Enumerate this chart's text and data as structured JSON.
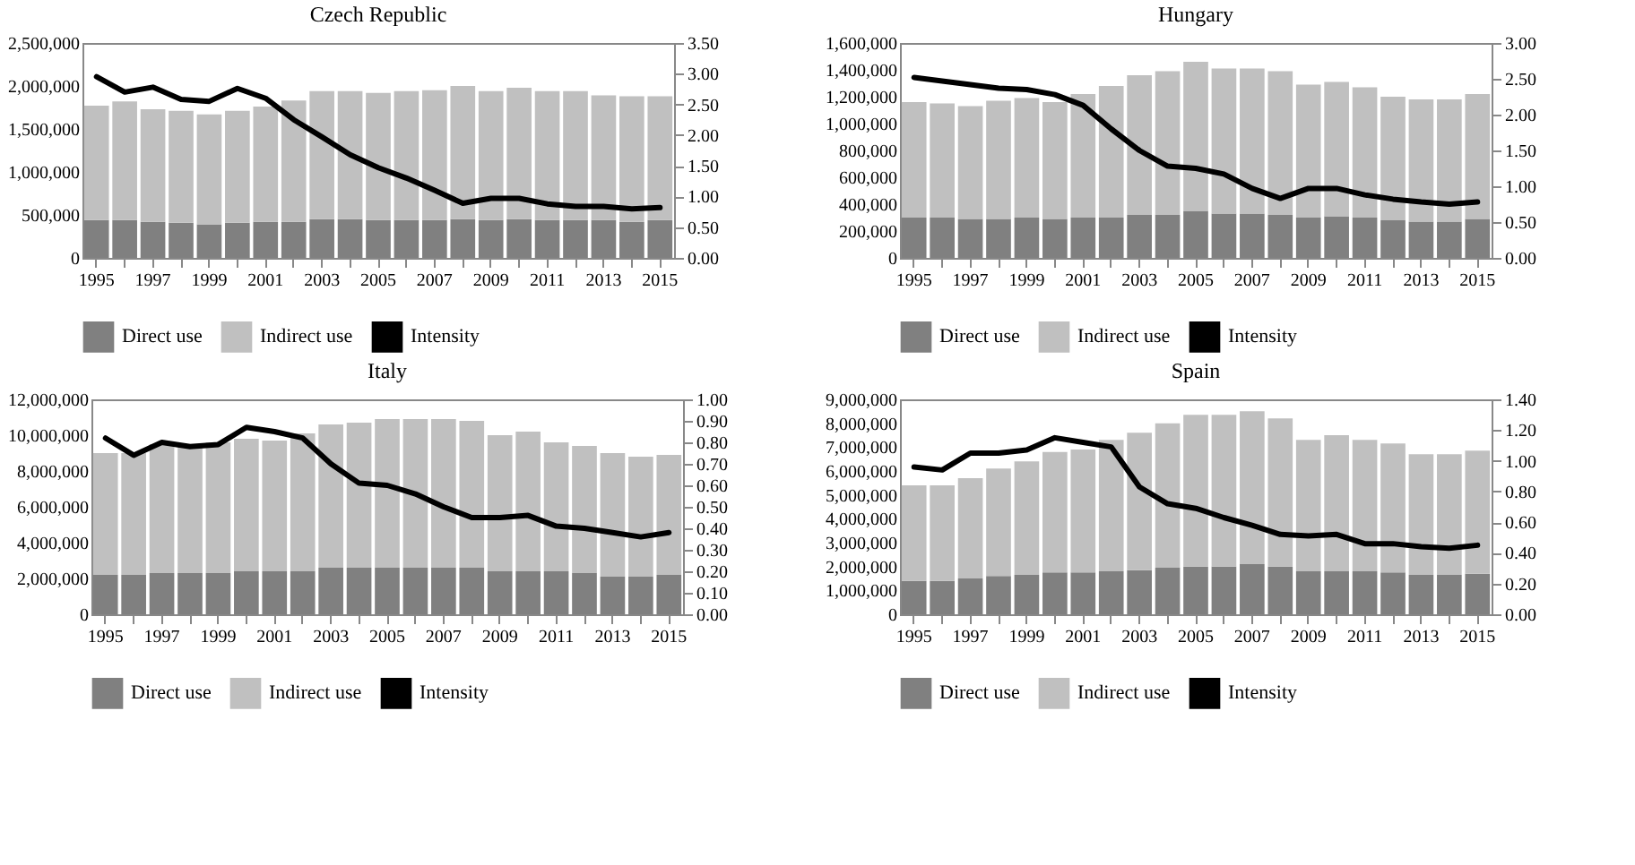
{
  "chart_data": [
    {
      "type": "bar",
      "stacked": true,
      "title": "Czech Republic",
      "legend": "bottom",
      "categories": [
        "1995",
        null,
        "1997",
        null,
        "1999",
        null,
        "2001",
        null,
        "2003",
        null,
        "2005",
        null,
        "2007",
        null,
        "2009",
        null,
        "2011",
        null,
        "2013",
        null,
        "2015"
      ],
      "series": [
        {
          "name": "Direct use",
          "color": "#808080",
          "values": [
            440000,
            440000,
            420000,
            410000,
            390000,
            410000,
            420000,
            420000,
            450000,
            450000,
            440000,
            440000,
            440000,
            450000,
            440000,
            450000,
            440000,
            440000,
            440000,
            420000,
            440000
          ]
        },
        {
          "name": "Indirect use",
          "color": "#c0c0c0",
          "values": [
            1330000,
            1380000,
            1310000,
            1300000,
            1280000,
            1300000,
            1340000,
            1410000,
            1490000,
            1490000,
            1480000,
            1500000,
            1510000,
            1550000,
            1500000,
            1530000,
            1500000,
            1500000,
            1450000,
            1460000,
            1440000
          ]
        },
        {
          "name": "Intensity",
          "color": "#000000",
          "type": "line",
          "axis": "y2",
          "values": [
            2.95,
            2.7,
            2.78,
            2.58,
            2.55,
            2.76,
            2.6,
            2.25,
            1.97,
            1.68,
            1.47,
            1.3,
            1.1,
            0.89,
            0.97,
            0.97,
            0.88,
            0.84,
            0.84,
            0.8,
            0.82
          ]
        }
      ],
      "ylim": [
        0,
        2500000
      ],
      "yticks": [
        {
          "value": 0,
          "label": "0"
        },
        {
          "value": 500000,
          "label": "500,000"
        },
        {
          "value": 1000000,
          "label": "1,000,000"
        },
        {
          "value": 1500000,
          "label": "1,500,000"
        },
        {
          "value": 2000000,
          "label": "2,000,000"
        },
        {
          "value": 2500000,
          "label": "2,500,000"
        }
      ],
      "y2lim": [
        0,
        3.5
      ],
      "y2ticks": [
        {
          "value": 0,
          "label": "0.00"
        },
        {
          "value": 0.5,
          "label": "0.50"
        },
        {
          "value": 1,
          "label": "1.00"
        },
        {
          "value": 1.5,
          "label": "1.50"
        },
        {
          "value": 2,
          "label": "2.00"
        },
        {
          "value": 2.5,
          "label": "2.50"
        },
        {
          "value": 3,
          "label": "3.00"
        },
        {
          "value": 3.5,
          "label": "3.50"
        }
      ]
    },
    {
      "type": "bar",
      "stacked": true,
      "title": "Hungary",
      "legend": "bottom",
      "categories": [
        "1995",
        null,
        "1997",
        null,
        "1999",
        null,
        "2001",
        null,
        "2003",
        null,
        "2005",
        null,
        "2007",
        null,
        "2009",
        null,
        "2011",
        null,
        "2013",
        null,
        "2015"
      ],
      "series": [
        {
          "name": "Direct use",
          "color": "#808080",
          "values": [
            300000,
            300000,
            290000,
            290000,
            300000,
            290000,
            300000,
            300000,
            320000,
            320000,
            350000,
            330000,
            330000,
            320000,
            300000,
            310000,
            300000,
            280000,
            270000,
            270000,
            290000
          ]
        },
        {
          "name": "Indirect use",
          "color": "#c0c0c0",
          "values": [
            860000,
            850000,
            840000,
            880000,
            890000,
            870000,
            920000,
            980000,
            1040000,
            1070000,
            1110000,
            1080000,
            1080000,
            1070000,
            990000,
            1000000,
            970000,
            920000,
            910000,
            910000,
            930000
          ]
        },
        {
          "name": "Intensity",
          "color": "#000000",
          "type": "line",
          "axis": "y2",
          "values": [
            2.52,
            2.47,
            2.42,
            2.37,
            2.35,
            2.28,
            2.13,
            1.8,
            1.5,
            1.28,
            1.25,
            1.17,
            0.97,
            0.83,
            0.97,
            0.97,
            0.88,
            0.82,
            0.78,
            0.75,
            0.78
          ]
        }
      ],
      "ylim": [
        0,
        1600000
      ],
      "yticks": [
        {
          "value": 0,
          "label": "0"
        },
        {
          "value": 200000,
          "label": "200,000"
        },
        {
          "value": 400000,
          "label": "400,000"
        },
        {
          "value": 600000,
          "label": "600,000"
        },
        {
          "value": 800000,
          "label": "800,000"
        },
        {
          "value": 1000000,
          "label": "1,000,000"
        },
        {
          "value": 1200000,
          "label": "1,200,000"
        },
        {
          "value": 1400000,
          "label": "1,400,000"
        },
        {
          "value": 1600000,
          "label": "1,600,000"
        }
      ],
      "y2lim": [
        0,
        3
      ],
      "y2ticks": [
        {
          "value": 0,
          "label": "0.00"
        },
        {
          "value": 0.5,
          "label": "0.50"
        },
        {
          "value": 1,
          "label": "1.00"
        },
        {
          "value": 1.5,
          "label": "1.50"
        },
        {
          "value": 2,
          "label": "2.00"
        },
        {
          "value": 2.5,
          "label": "2.50"
        },
        {
          "value": 3,
          "label": "3.00"
        }
      ]
    },
    {
      "type": "bar",
      "stacked": true,
      "title": "Italy",
      "legend": "bottom",
      "categories": [
        "1995",
        null,
        "1997",
        null,
        "1999",
        null,
        "2001",
        null,
        "2003",
        null,
        "2005",
        null,
        "2007",
        null,
        "2009",
        null,
        "2011",
        null,
        "2013",
        null,
        "2015"
      ],
      "series": [
        {
          "name": "Direct use",
          "color": "#808080",
          "values": [
            2200000,
            2200000,
            2300000,
            2300000,
            2300000,
            2400000,
            2400000,
            2400000,
            2600000,
            2600000,
            2600000,
            2600000,
            2600000,
            2600000,
            2400000,
            2400000,
            2400000,
            2300000,
            2100000,
            2100000,
            2200000
          ]
        },
        {
          "name": "Indirect use",
          "color": "#c0c0c0",
          "values": [
            6800000,
            6800000,
            7200000,
            7200000,
            7300000,
            7400000,
            7300000,
            7700000,
            8000000,
            8100000,
            8300000,
            8300000,
            8300000,
            8200000,
            7600000,
            7800000,
            7200000,
            7100000,
            6900000,
            6700000,
            6700000
          ]
        },
        {
          "name": "Intensity",
          "color": "#000000",
          "type": "line",
          "axis": "y2",
          "values": [
            0.82,
            0.74,
            0.8,
            0.78,
            0.79,
            0.87,
            0.85,
            0.82,
            0.7,
            0.61,
            0.6,
            0.56,
            0.5,
            0.45,
            0.45,
            0.46,
            0.41,
            0.4,
            0.38,
            0.36,
            0.38
          ]
        }
      ],
      "ylim": [
        0,
        12000000
      ],
      "yticks": [
        {
          "value": 0,
          "label": "0"
        },
        {
          "value": 2000000,
          "label": "2,000,000"
        },
        {
          "value": 4000000,
          "label": "4,000,000"
        },
        {
          "value": 6000000,
          "label": "6,000,000"
        },
        {
          "value": 8000000,
          "label": "8,000,000"
        },
        {
          "value": 10000000,
          "label": "10,000,000"
        },
        {
          "value": 12000000,
          "label": "12,000,000"
        }
      ],
      "y2lim": [
        0,
        1
      ],
      "y2ticks": [
        {
          "value": 0,
          "label": "0.00"
        },
        {
          "value": 0.1,
          "label": "0.10"
        },
        {
          "value": 0.2,
          "label": "0.20"
        },
        {
          "value": 0.3,
          "label": "0.30"
        },
        {
          "value": 0.4,
          "label": "0.40"
        },
        {
          "value": 0.5,
          "label": "0.50"
        },
        {
          "value": 0.6,
          "label": "0.60"
        },
        {
          "value": 0.7,
          "label": "0.70"
        },
        {
          "value": 0.8,
          "label": "0.80"
        },
        {
          "value": 0.9,
          "label": "0.90"
        },
        {
          "value": 1,
          "label": "1.00"
        }
      ]
    },
    {
      "type": "bar",
      "stacked": true,
      "title": "Spain",
      "legend": "bottom",
      "categories": [
        "1995",
        null,
        "1997",
        null,
        "1999",
        null,
        "2001",
        null,
        "2003",
        null,
        "2005",
        null,
        "2007",
        null,
        "2009",
        null,
        "2011",
        null,
        "2013",
        null,
        "2015"
      ],
      "series": [
        {
          "name": "Direct use",
          "color": "#808080",
          "values": [
            1400000,
            1400000,
            1500000,
            1600000,
            1650000,
            1750000,
            1750000,
            1800000,
            1850000,
            1950000,
            2000000,
            2000000,
            2100000,
            2000000,
            1800000,
            1800000,
            1800000,
            1750000,
            1650000,
            1650000,
            1700000
          ]
        },
        {
          "name": "Indirect use",
          "color": "#c0c0c0",
          "values": [
            4000000,
            4000000,
            4200000,
            4500000,
            4750000,
            5050000,
            5150000,
            5500000,
            5750000,
            6050000,
            6350000,
            6350000,
            6400000,
            6200000,
            5500000,
            5700000,
            5500000,
            5400000,
            5050000,
            5050000,
            5150000
          ]
        },
        {
          "name": "Intensity",
          "color": "#000000",
          "type": "line",
          "axis": "y2",
          "values": [
            0.96,
            0.94,
            1.05,
            1.05,
            1.07,
            1.15,
            1.12,
            1.09,
            0.83,
            0.72,
            0.69,
            0.63,
            0.58,
            0.52,
            0.51,
            0.52,
            0.46,
            0.46,
            0.44,
            0.43,
            0.45
          ]
        }
      ],
      "ylim": [
        0,
        9000000
      ],
      "yticks": [
        {
          "value": 0,
          "label": "0"
        },
        {
          "value": 1000000,
          "label": "1,000,000"
        },
        {
          "value": 2000000,
          "label": "2,000,000"
        },
        {
          "value": 3000000,
          "label": "3,000,000"
        },
        {
          "value": 4000000,
          "label": "4,000,000"
        },
        {
          "value": 5000000,
          "label": "5,000,000"
        },
        {
          "value": 6000000,
          "label": "6,000,000"
        },
        {
          "value": 7000000,
          "label": "7,000,000"
        },
        {
          "value": 8000000,
          "label": "8,000,000"
        },
        {
          "value": 9000000,
          "label": "9,000,000"
        }
      ],
      "y2lim": [
        0,
        1.4
      ],
      "y2ticks": [
        {
          "value": 0,
          "label": "0.00"
        },
        {
          "value": 0.2,
          "label": "0.20"
        },
        {
          "value": 0.4,
          "label": "0.40"
        },
        {
          "value": 0.6,
          "label": "0.60"
        },
        {
          "value": 0.8,
          "label": "0.80"
        },
        {
          "value": 1,
          "label": "1.00"
        },
        {
          "value": 1.2,
          "label": "1.20"
        },
        {
          "value": 1.4,
          "label": "1.40"
        }
      ]
    }
  ]
}
